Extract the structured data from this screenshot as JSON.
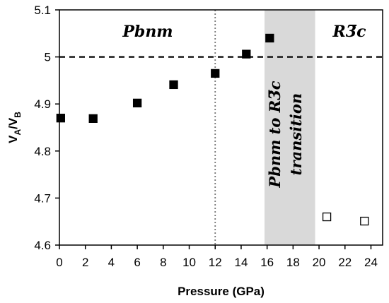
{
  "chart_data": {
    "type": "scatter",
    "title": "",
    "xlabel": "Pressure (GPa)",
    "ylabel": "V",
    "ylabel_sub_a": "A",
    "ylabel_slash": "/V",
    "ylabel_sub_b": "B",
    "xlim": [
      0,
      24.9
    ],
    "ylim": [
      4.6,
      5.1
    ],
    "xticks": [
      "0",
      "2",
      "4",
      "6",
      "8",
      "10",
      "12",
      "14",
      "16",
      "18",
      "20",
      "22",
      "24"
    ],
    "yticks": [
      "4.6",
      "4.7",
      "4.8",
      "4.9",
      "5",
      "5.1"
    ],
    "grid": false,
    "series": [
      {
        "marker": "filled-square",
        "color": "#000000",
        "points": [
          {
            "x": 0.1,
            "y": 4.87
          },
          {
            "x": 2.6,
            "y": 4.869
          },
          {
            "x": 6.0,
            "y": 4.902
          },
          {
            "x": 8.8,
            "y": 4.941
          },
          {
            "x": 12.0,
            "y": 4.965
          },
          {
            "x": 14.4,
            "y": 5.006
          },
          {
            "x": 16.2,
            "y": 5.04
          }
        ]
      },
      {
        "marker": "open-square",
        "color": "#000000",
        "points": [
          {
            "x": 20.6,
            "y": 4.66
          },
          {
            "x": 23.5,
            "y": 4.651
          }
        ]
      }
    ],
    "reference_lines": {
      "horizontal_dashed_y": 5.0,
      "vertical_dotted_x": 12.0
    },
    "shaded_band": {
      "x0": 15.8,
      "x1": 19.7,
      "color": "#d9d9d9",
      "label_line1": "Pbnm to R3̅c",
      "label_line2": "transition"
    },
    "annotations": {
      "left_phase": "Pbnm",
      "right_phase": "R3̅c"
    }
  }
}
